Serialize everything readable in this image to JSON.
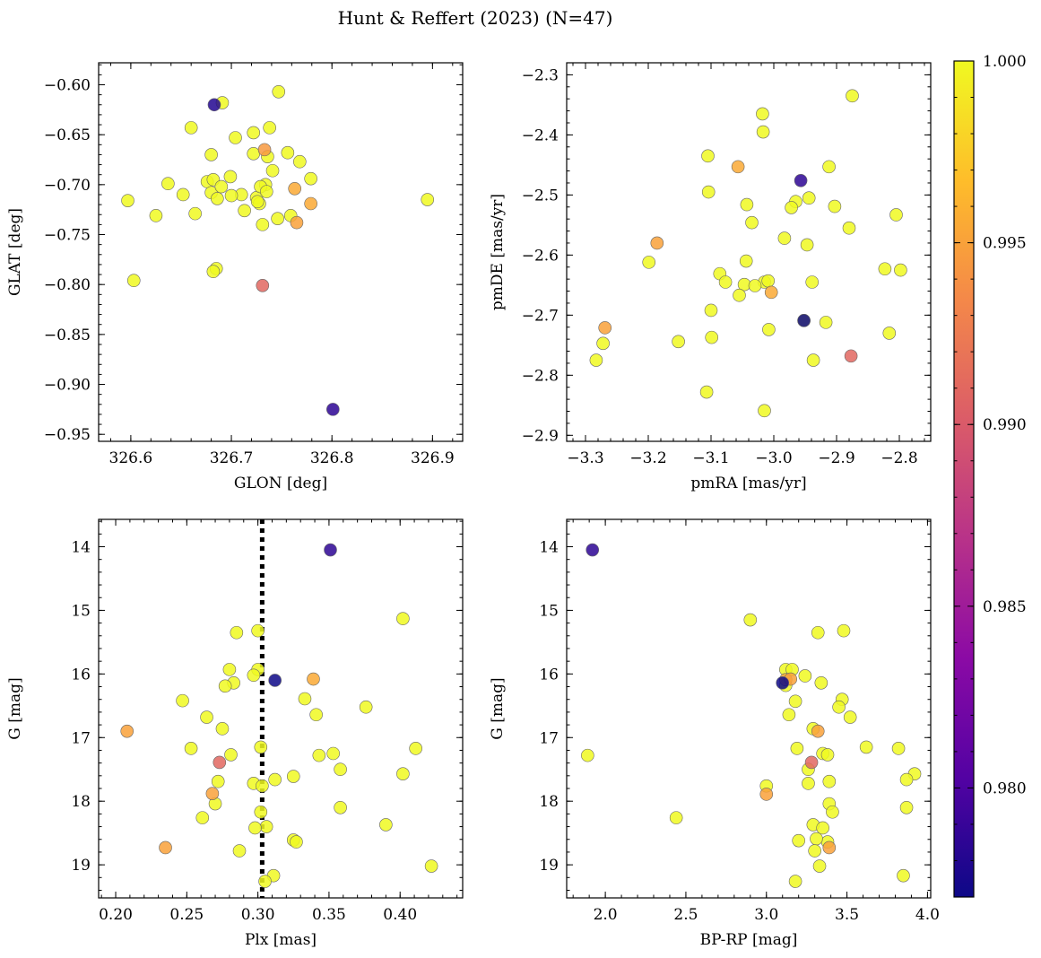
{
  "figure": {
    "title": "Hunt & Reffert (2023) (N=47)"
  },
  "colorbar": {
    "range": [
      0.977,
      1.0
    ],
    "ticks": [
      0.98,
      0.985,
      0.99,
      0.995,
      1.0
    ],
    "tick_labels": [
      "0.980",
      "0.985",
      "0.990",
      "0.995",
      "1.000"
    ],
    "colormap_stops": [
      "#0d0887",
      "#5302a3",
      "#8b0aa5",
      "#b83289",
      "#db5c68",
      "#f48849",
      "#febd2a",
      "#f0f921"
    ]
  },
  "chart_data": [
    {
      "id": "glon_glat",
      "type": "scatter",
      "xlabel": "GLON [deg]",
      "ylabel": "GLAT [deg]",
      "xlim": [
        326.568,
        326.93
      ],
      "ylim": [
        -0.957,
        -0.578
      ],
      "xticks": [
        326.6,
        326.7,
        326.8,
        326.9
      ],
      "xtick_labels": [
        "326.6",
        "326.7",
        "326.8",
        "326.9"
      ],
      "yticks": [
        -0.95,
        -0.9,
        -0.85,
        -0.8,
        -0.75,
        -0.7,
        -0.65,
        -0.6
      ],
      "ytick_labels": [
        "−0.95",
        "−0.90",
        "−0.85",
        "−0.80",
        "−0.75",
        "−0.70",
        "−0.65",
        "−0.60"
      ],
      "x": [
        326.683,
        326.801,
        326.747,
        326.691,
        326.66,
        326.704,
        326.722,
        326.738,
        326.733,
        326.756,
        326.768,
        326.736,
        326.722,
        326.68,
        326.741,
        326.779,
        326.597,
        326.625,
        326.637,
        326.652,
        326.664,
        326.676,
        326.682,
        326.68,
        326.686,
        326.69,
        326.699,
        326.71,
        326.725,
        326.734,
        326.729,
        326.735,
        326.728,
        326.713,
        326.7,
        326.731,
        326.746,
        326.763,
        326.779,
        326.726,
        326.765,
        326.759,
        326.603,
        326.685,
        326.682,
        326.731,
        326.895
      ],
      "y": [
        -0.62,
        -0.925,
        -0.607,
        -0.618,
        -0.643,
        -0.653,
        -0.648,
        -0.643,
        -0.665,
        -0.668,
        -0.677,
        -0.672,
        -0.669,
        -0.67,
        -0.686,
        -0.694,
        -0.716,
        -0.731,
        -0.699,
        -0.71,
        -0.729,
        -0.697,
        -0.695,
        -0.708,
        -0.714,
        -0.702,
        -0.692,
        -0.71,
        -0.713,
        -0.7,
        -0.702,
        -0.707,
        -0.719,
        -0.726,
        -0.711,
        -0.74,
        -0.734,
        -0.704,
        -0.719,
        -0.717,
        -0.738,
        -0.731,
        -0.796,
        -0.784,
        -0.787,
        -0.801,
        -0.715
      ],
      "p": [
        0.978,
        0.9785,
        1,
        1,
        1,
        1,
        1,
        1,
        0.9945,
        1,
        1,
        1,
        1,
        1,
        1,
        1,
        1,
        1,
        1,
        1,
        1,
        1,
        1,
        1,
        1,
        1,
        1,
        1,
        1,
        1,
        1,
        1,
        1,
        1,
        1,
        1,
        1,
        0.9955,
        0.9955,
        1,
        0.995,
        1,
        1,
        1,
        1,
        0.991,
        1
      ]
    },
    {
      "id": "pmra_pmde",
      "type": "scatter",
      "xlabel": "pmRA [mas/yr]",
      "ylabel": "pmDE [mas/yr]",
      "xlim": [
        -3.33,
        -2.75
      ],
      "ylim": [
        -2.91,
        -2.28
      ],
      "xticks": [
        -3.3,
        -3.2,
        -3.1,
        -3.0,
        -2.9,
        -2.8
      ],
      "xtick_labels": [
        "−3.3",
        "−3.2",
        "−3.1",
        "−3.0",
        "−2.9",
        "−2.8"
      ],
      "yticks": [
        -2.9,
        -2.8,
        -2.7,
        -2.6,
        -2.5,
        -2.4,
        -2.3
      ],
      "ytick_labels": [
        "−2.9",
        "−2.8",
        "−2.7",
        "−2.6",
        "−2.5",
        "−2.4",
        "−2.3"
      ],
      "x": [
        -2.875,
        -3.018,
        -3.017,
        -3.105,
        -2.912,
        -3.057,
        -3.104,
        -2.957,
        -2.944,
        -2.965,
        -2.972,
        -2.903,
        -2.805,
        -3.043,
        -3.035,
        -2.983,
        -2.88,
        -2.947,
        -3.186,
        -3.199,
        -3.044,
        -2.823,
        -2.798,
        -3.086,
        -3.077,
        -3.015,
        -3.047,
        -3.03,
        -3.009,
        -2.939,
        -3.055,
        -3.004,
        -3.1,
        -2.917,
        -3.269,
        -3.008,
        -2.952,
        -3.272,
        -3.152,
        -3.099,
        -2.816,
        -3.283,
        -2.937,
        -2.877,
        -3.107,
        -3.015,
        -2.952
      ],
      "y": [
        -2.335,
        -2.365,
        -2.395,
        -2.435,
        -2.453,
        -2.453,
        -2.495,
        -2.476,
        -2.505,
        -2.511,
        -2.521,
        -2.519,
        -2.533,
        -2.516,
        -2.546,
        -2.572,
        -2.555,
        -2.583,
        -2.58,
        -2.612,
        -2.61,
        -2.623,
        -2.625,
        -2.631,
        -2.645,
        -2.645,
        -2.649,
        -2.651,
        -2.643,
        -2.645,
        -2.667,
        -2.662,
        -2.692,
        -2.712,
        -2.721,
        -2.724,
        -2.709,
        -2.747,
        -2.744,
        -2.737,
        -2.73,
        -2.775,
        -2.775,
        -2.768,
        -2.828,
        -2.859,
        -2.709
      ],
      "p": [
        1,
        1,
        1,
        1,
        1,
        0.9955,
        1,
        0.9785,
        1,
        1,
        1,
        1,
        1,
        1,
        1,
        1,
        1,
        1,
        0.995,
        1,
        1,
        1,
        1,
        1,
        1,
        1,
        1,
        1,
        1,
        1,
        1,
        0.9955,
        1,
        1,
        0.995,
        1,
        1,
        1,
        1,
        1,
        1,
        1,
        1,
        0.991,
        1,
        1,
        0.977
      ]
    },
    {
      "id": "plx_g",
      "type": "scatter",
      "xlabel": "Plx [mas]",
      "ylabel": "G [mag]",
      "xlim": [
        0.188,
        0.444
      ],
      "ylim": [
        19.52,
        13.57
      ],
      "y_inverted": true,
      "vline": 0.303,
      "xticks": [
        0.2,
        0.25,
        0.3,
        0.35,
        0.4
      ],
      "xtick_labels": [
        "0.20",
        "0.25",
        "0.30",
        "0.35",
        "0.40"
      ],
      "yticks": [
        14,
        15,
        16,
        17,
        18,
        19
      ],
      "ytick_labels": [
        "14",
        "15",
        "16",
        "17",
        "18",
        "19"
      ],
      "x": [
        0.351,
        0.402,
        0.285,
        0.3,
        0.28,
        0.3,
        0.297,
        0.312,
        0.339,
        0.283,
        0.277,
        0.247,
        0.333,
        0.376,
        0.264,
        0.341,
        0.275,
        0.208,
        0.253,
        0.281,
        0.302,
        0.343,
        0.353,
        0.411,
        0.273,
        0.358,
        0.402,
        0.325,
        0.312,
        0.297,
        0.303,
        0.272,
        0.268,
        0.358,
        0.27,
        0.302,
        0.261,
        0.306,
        0.298,
        0.39,
        0.325,
        0.327,
        0.235,
        0.287,
        0.311,
        0.305,
        0.422
      ],
      "y": [
        14.05,
        15.13,
        15.35,
        15.32,
        15.93,
        15.93,
        16.02,
        16.1,
        16.08,
        16.14,
        16.19,
        16.42,
        16.39,
        16.52,
        16.68,
        16.64,
        16.86,
        16.9,
        17.17,
        17.27,
        17.15,
        17.28,
        17.25,
        17.17,
        17.39,
        17.5,
        17.57,
        17.61,
        17.66,
        17.72,
        17.76,
        17.69,
        17.88,
        18.1,
        18.04,
        18.17,
        18.26,
        18.4,
        18.42,
        18.37,
        18.61,
        18.64,
        18.73,
        18.78,
        19.17,
        19.26,
        19.02
      ],
      "p": [
        0.9785,
        1,
        1,
        1,
        1,
        1,
        1,
        0.977,
        0.9955,
        1,
        1,
        1,
        1,
        1,
        1,
        1,
        1,
        0.995,
        1,
        1,
        1,
        1,
        1,
        1,
        0.991,
        1,
        1,
        1,
        1,
        1,
        1,
        1,
        0.995,
        1,
        1,
        1,
        1,
        1,
        1,
        1,
        1,
        1,
        0.995,
        1,
        1,
        1,
        1
      ]
    },
    {
      "id": "bprp_g",
      "type": "scatter",
      "xlabel": "BP-RP [mag]",
      "ylabel": "G [mag]",
      "xlim": [
        1.76,
        4.02
      ],
      "ylim": [
        19.52,
        13.57
      ],
      "y_inverted": true,
      "xticks": [
        2.0,
        2.5,
        3.0,
        3.5,
        4.0
      ],
      "xtick_labels": [
        "2.0",
        "2.5",
        "3.0",
        "3.5",
        "4.0"
      ],
      "yticks": [
        14,
        15,
        16,
        17,
        18,
        19
      ],
      "ytick_labels": [
        "14",
        "15",
        "16",
        "17",
        "18",
        "19"
      ],
      "x": [
        1.92,
        2.9,
        3.32,
        3.48,
        3.12,
        3.16,
        3.24,
        3.12,
        3.1,
        3.12,
        3.34,
        3.47,
        3.18,
        3.45,
        3.14,
        3.52,
        3.29,
        3.32,
        3.19,
        3.35,
        3.38,
        3.62,
        3.82,
        1.89,
        3.28,
        3.26,
        3.92,
        3.39,
        3.26,
        3.87,
        3.0,
        3.0,
        3.39,
        3.41,
        3.87,
        2.44,
        3.29,
        3.35,
        3.2,
        3.38,
        3.31,
        3.39,
        3.3,
        3.85,
        3.33,
        3.18,
        3.15
      ],
      "y": [
        14.05,
        15.15,
        15.35,
        15.32,
        15.93,
        15.93,
        16.03,
        16.09,
        16.14,
        16.18,
        16.14,
        16.4,
        16.43,
        16.52,
        16.64,
        16.68,
        16.86,
        16.9,
        17.17,
        17.25,
        17.27,
        17.15,
        17.17,
        17.28,
        17.39,
        17.5,
        17.57,
        17.69,
        17.72,
        17.66,
        17.76,
        17.89,
        18.04,
        18.17,
        18.1,
        18.26,
        18.37,
        18.42,
        18.62,
        18.64,
        18.59,
        18.73,
        18.78,
        19.17,
        19.02,
        19.26,
        16.08
      ],
      "p": [
        0.9785,
        1,
        1,
        1,
        1,
        1,
        1,
        0.9955,
        0.977,
        1,
        1,
        1,
        1,
        1,
        1,
        1,
        1,
        0.995,
        1,
        1,
        1,
        1,
        1,
        1,
        0.991,
        1,
        1,
        1,
        1,
        1,
        1,
        0.995,
        1,
        1,
        1,
        1,
        1,
        1,
        1,
        1,
        1,
        0.995,
        1,
        1,
        1,
        1,
        0.995
      ]
    }
  ]
}
